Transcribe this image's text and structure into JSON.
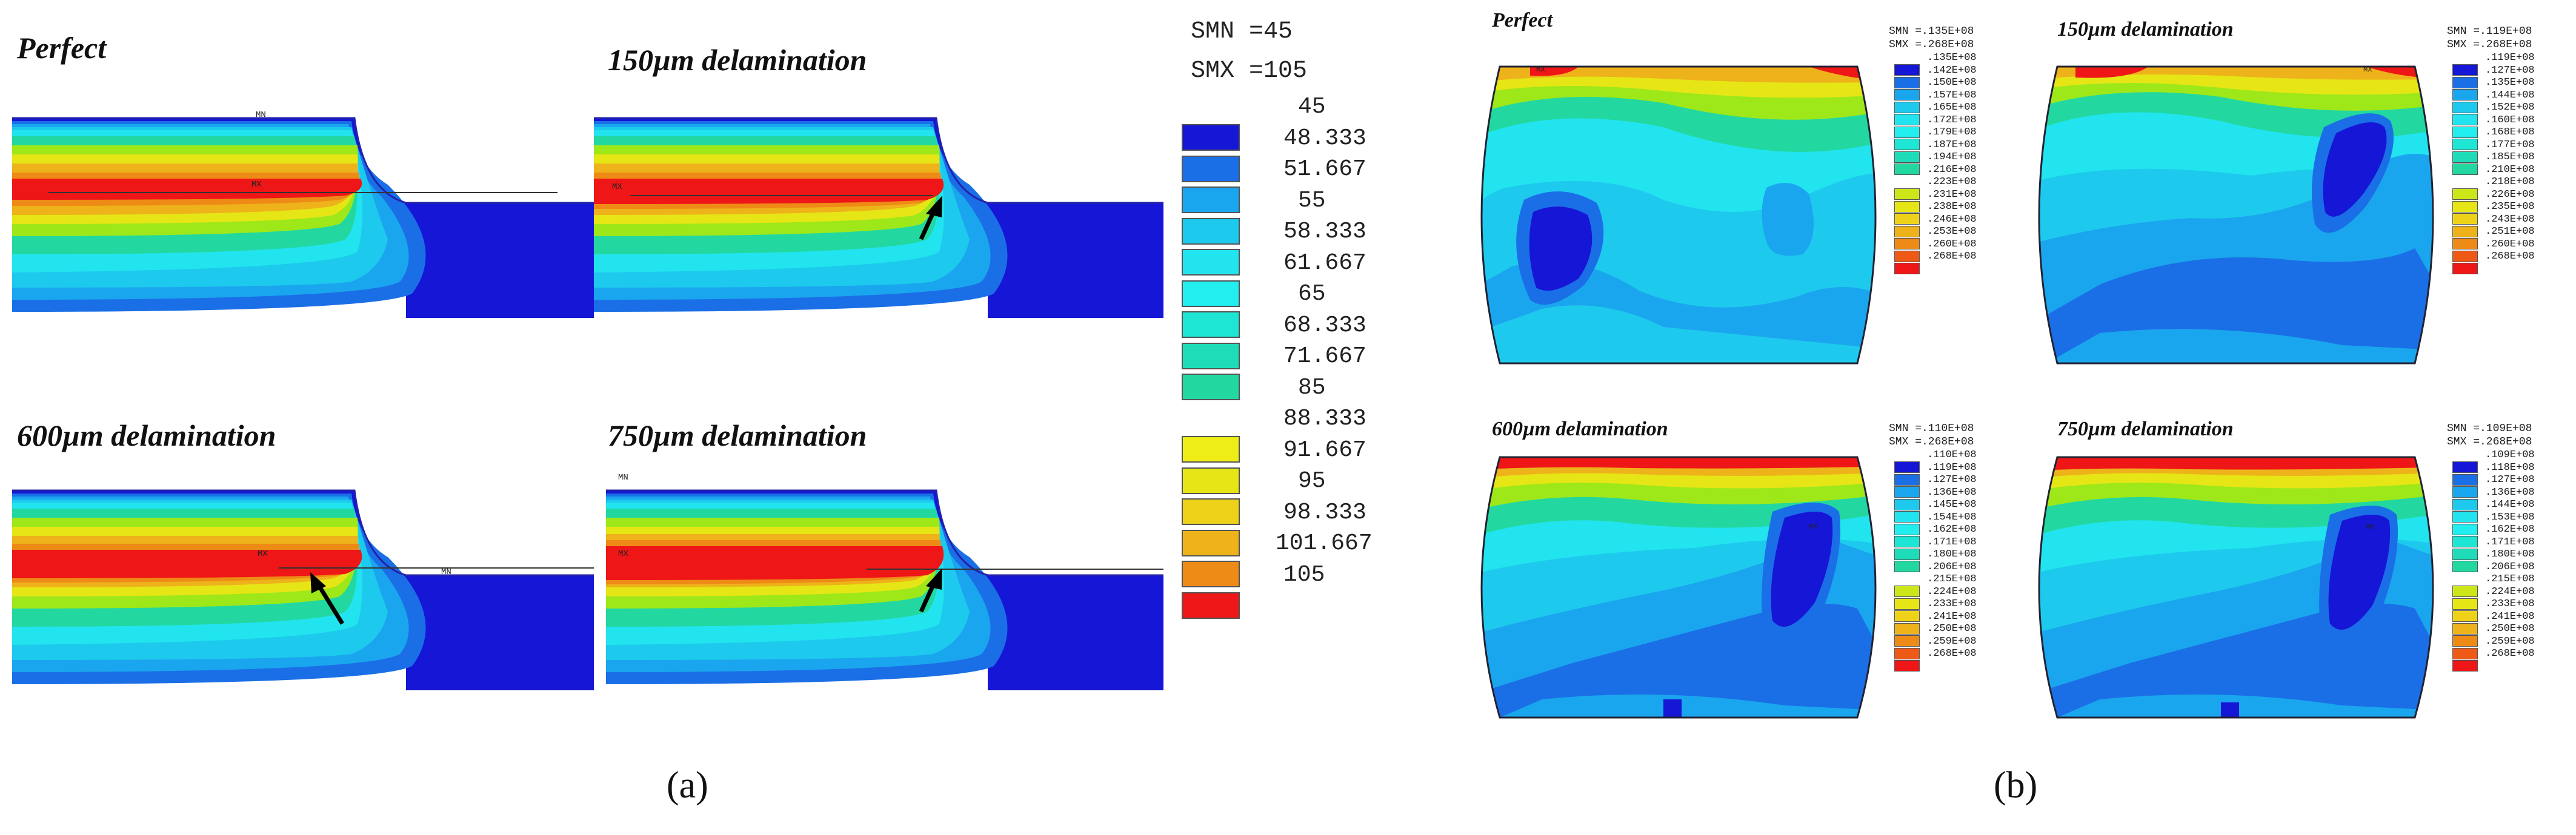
{
  "panel_a": {
    "titles": [
      "Perfect",
      "150µm delamination",
      "600µm delamination",
      "750µm delamination"
    ],
    "smn": "SMN =45",
    "smx": "SMX =105",
    "legend_values": [
      "45",
      "48.333",
      "51.667",
      "55",
      "58.333",
      "61.667",
      "65",
      "68.333",
      "71.667",
      "85",
      "88.333",
      "91.667",
      "95",
      "98.333",
      "101.667",
      "105"
    ],
    "legend_colors": [
      "#1616d6",
      "#1a6fe6",
      "#1aa6ee",
      "#1ec9ee",
      "#22e4ee",
      "#22eef0",
      "#1ee6d4",
      "#1edcb8",
      "#22d8a0",
      "#ffffff",
      "#eeee16",
      "#e6e616",
      "#eed21a",
      "#eeb21a",
      "#ee8a16",
      "#ee1616"
    ],
    "max_label": "MX",
    "min_label": "MN",
    "caption": "(a)"
  },
  "panel_b": {
    "titles": [
      "Perfect",
      "150µm delamination",
      "600µm delamination",
      "750µm delamination"
    ],
    "legends": [
      {
        "smn": "SMN =.135E+08",
        "smx": "SMX =.268E+08",
        "values": [
          ".135E+08",
          ".142E+08",
          ".150E+08",
          ".157E+08",
          ".165E+08",
          ".172E+08",
          ".179E+08",
          ".187E+08",
          ".194E+08",
          ".216E+08",
          ".223E+08",
          ".231E+08",
          ".238E+08",
          ".246E+08",
          ".253E+08",
          ".260E+08",
          ".268E+08"
        ]
      },
      {
        "smn": "SMN =.119E+08",
        "smx": "SMX =.268E+08",
        "values": [
          ".119E+08",
          ".127E+08",
          ".135E+08",
          ".144E+08",
          ".152E+08",
          ".160E+08",
          ".168E+08",
          ".177E+08",
          ".185E+08",
          ".210E+08",
          ".218E+08",
          ".226E+08",
          ".235E+08",
          ".243E+08",
          ".251E+08",
          ".260E+08",
          ".268E+08"
        ]
      },
      {
        "smn": "SMN =.110E+08",
        "smx": "SMX =.268E+08",
        "values": [
          ".110E+08",
          ".119E+08",
          ".127E+08",
          ".136E+08",
          ".145E+08",
          ".154E+08",
          ".162E+08",
          ".171E+08",
          ".180E+08",
          ".206E+08",
          ".215E+08",
          ".224E+08",
          ".233E+08",
          ".241E+08",
          ".250E+08",
          ".259E+08",
          ".268E+08"
        ]
      },
      {
        "smn": "SMN =.109E+08",
        "smx": "SMX =.268E+08",
        "values": [
          ".109E+08",
          ".118E+08",
          ".127E+08",
          ".136E+08",
          ".144E+08",
          ".153E+08",
          ".162E+08",
          ".171E+08",
          ".180E+08",
          ".206E+08",
          ".215E+08",
          ".224E+08",
          ".233E+08",
          ".241E+08",
          ".250E+08",
          ".259E+08",
          ".268E+08"
        ]
      }
    ],
    "legend_colors": [
      "#1616d6",
      "#1a6fe6",
      "#1aa6ee",
      "#1ec9ee",
      "#22e4ee",
      "#22eef0",
      "#1ee6d4",
      "#1edcb8",
      "#22d8a0",
      "#ffffff",
      "#cce61a",
      "#e6e616",
      "#eed21a",
      "#eeb21a",
      "#ee8a16",
      "#ee5a16",
      "#ee1616"
    ],
    "max_label": "MX",
    "caption": "(b)"
  }
}
